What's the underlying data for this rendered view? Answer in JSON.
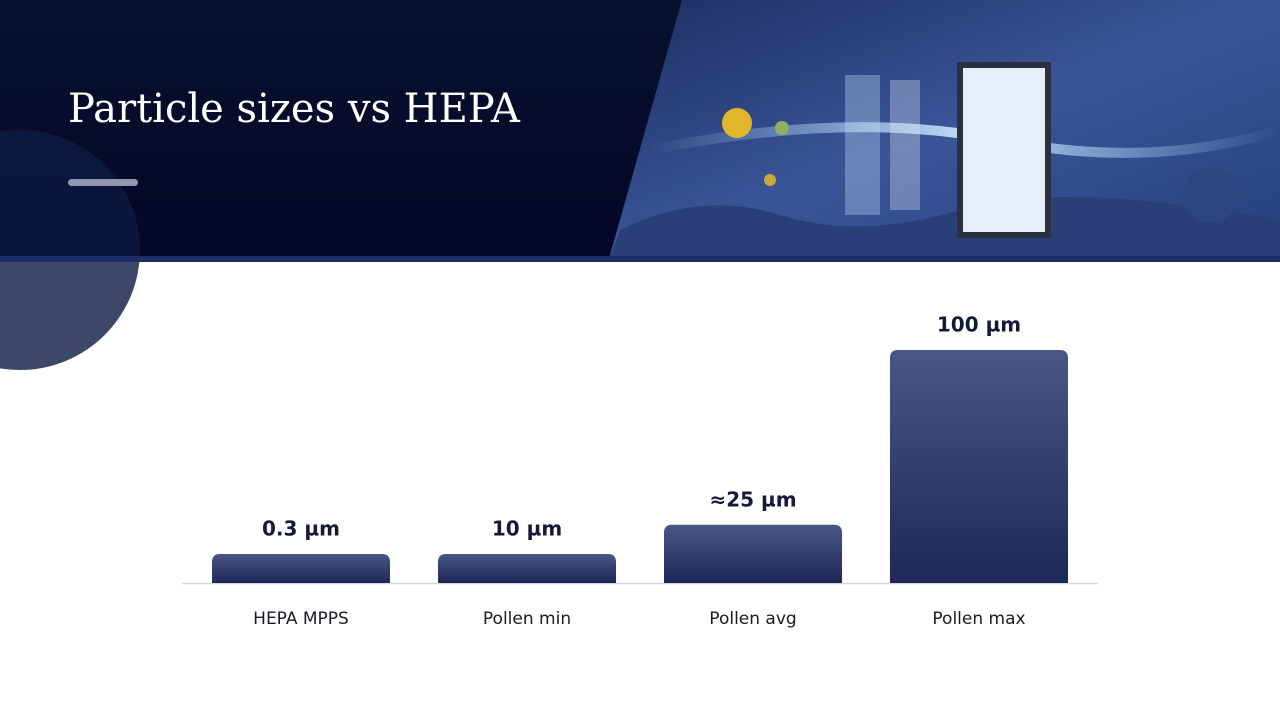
{
  "title": "Particle sizes vs HEPA",
  "chart_data": {
    "type": "bar",
    "categories": [
      "HEPA MPPS",
      "Pollen min",
      "Pollen avg",
      "Pollen max"
    ],
    "values": [
      0.3,
      10,
      25,
      100
    ],
    "value_labels": [
      "0.3 µm",
      "10 µm",
      "≈25 µm",
      "100 µm"
    ],
    "color": "#1d2859"
  }
}
